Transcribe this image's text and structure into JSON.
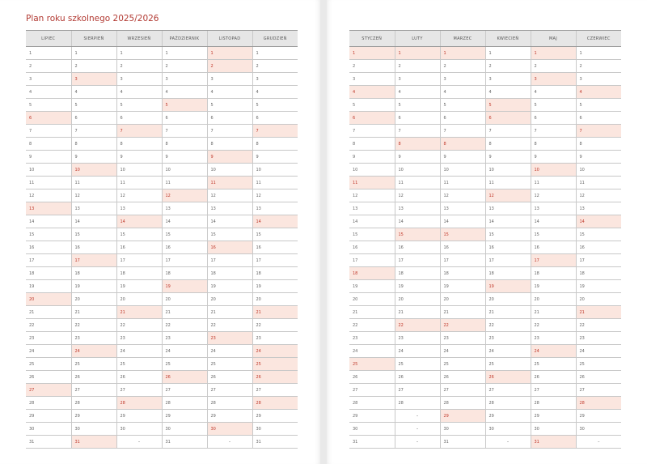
{
  "title": "Plan roku szkolnego 2025/2026",
  "colors": {
    "highlight_bg": "#fbe6df",
    "highlight_text": "#c0392b",
    "title": "#b23a33"
  },
  "filler": "–",
  "left_page": {
    "months": [
      {
        "name": "LIPIEC",
        "days_in_month": 31,
        "highlight": [
          6,
          13,
          20,
          27
        ]
      },
      {
        "name": "SIERPIEŃ",
        "days_in_month": 31,
        "highlight": [
          3,
          10,
          17,
          24,
          31
        ]
      },
      {
        "name": "WRZESIEŃ",
        "days_in_month": 30,
        "highlight": [
          7,
          14,
          21,
          28
        ]
      },
      {
        "name": "PAŹDZIERNIK",
        "days_in_month": 31,
        "highlight": [
          5,
          12,
          19,
          26
        ]
      },
      {
        "name": "LISTOPAD",
        "days_in_month": 30,
        "highlight": [
          1,
          2,
          9,
          11,
          16,
          23,
          30
        ]
      },
      {
        "name": "GRUDZIEŃ",
        "days_in_month": 31,
        "highlight": [
          7,
          14,
          21,
          24,
          25,
          26,
          28
        ]
      }
    ]
  },
  "right_page": {
    "months": [
      {
        "name": "STYCZEŃ",
        "days_in_month": 31,
        "highlight": [
          1,
          4,
          6,
          11,
          18,
          25
        ]
      },
      {
        "name": "LUTY",
        "days_in_month": 28,
        "highlight": [
          1,
          8,
          15,
          22
        ]
      },
      {
        "name": "MARZEC",
        "days_in_month": 31,
        "highlight": [
          1,
          8,
          15,
          22,
          29
        ]
      },
      {
        "name": "KWIECIEŃ",
        "days_in_month": 30,
        "highlight": [
          5,
          6,
          12,
          19,
          26
        ]
      },
      {
        "name": "MAJ",
        "days_in_month": 31,
        "highlight": [
          1,
          3,
          10,
          17,
          24,
          31
        ]
      },
      {
        "name": "CZERWIEC",
        "days_in_month": 30,
        "highlight": [
          4,
          7,
          14,
          21,
          28
        ]
      }
    ]
  }
}
